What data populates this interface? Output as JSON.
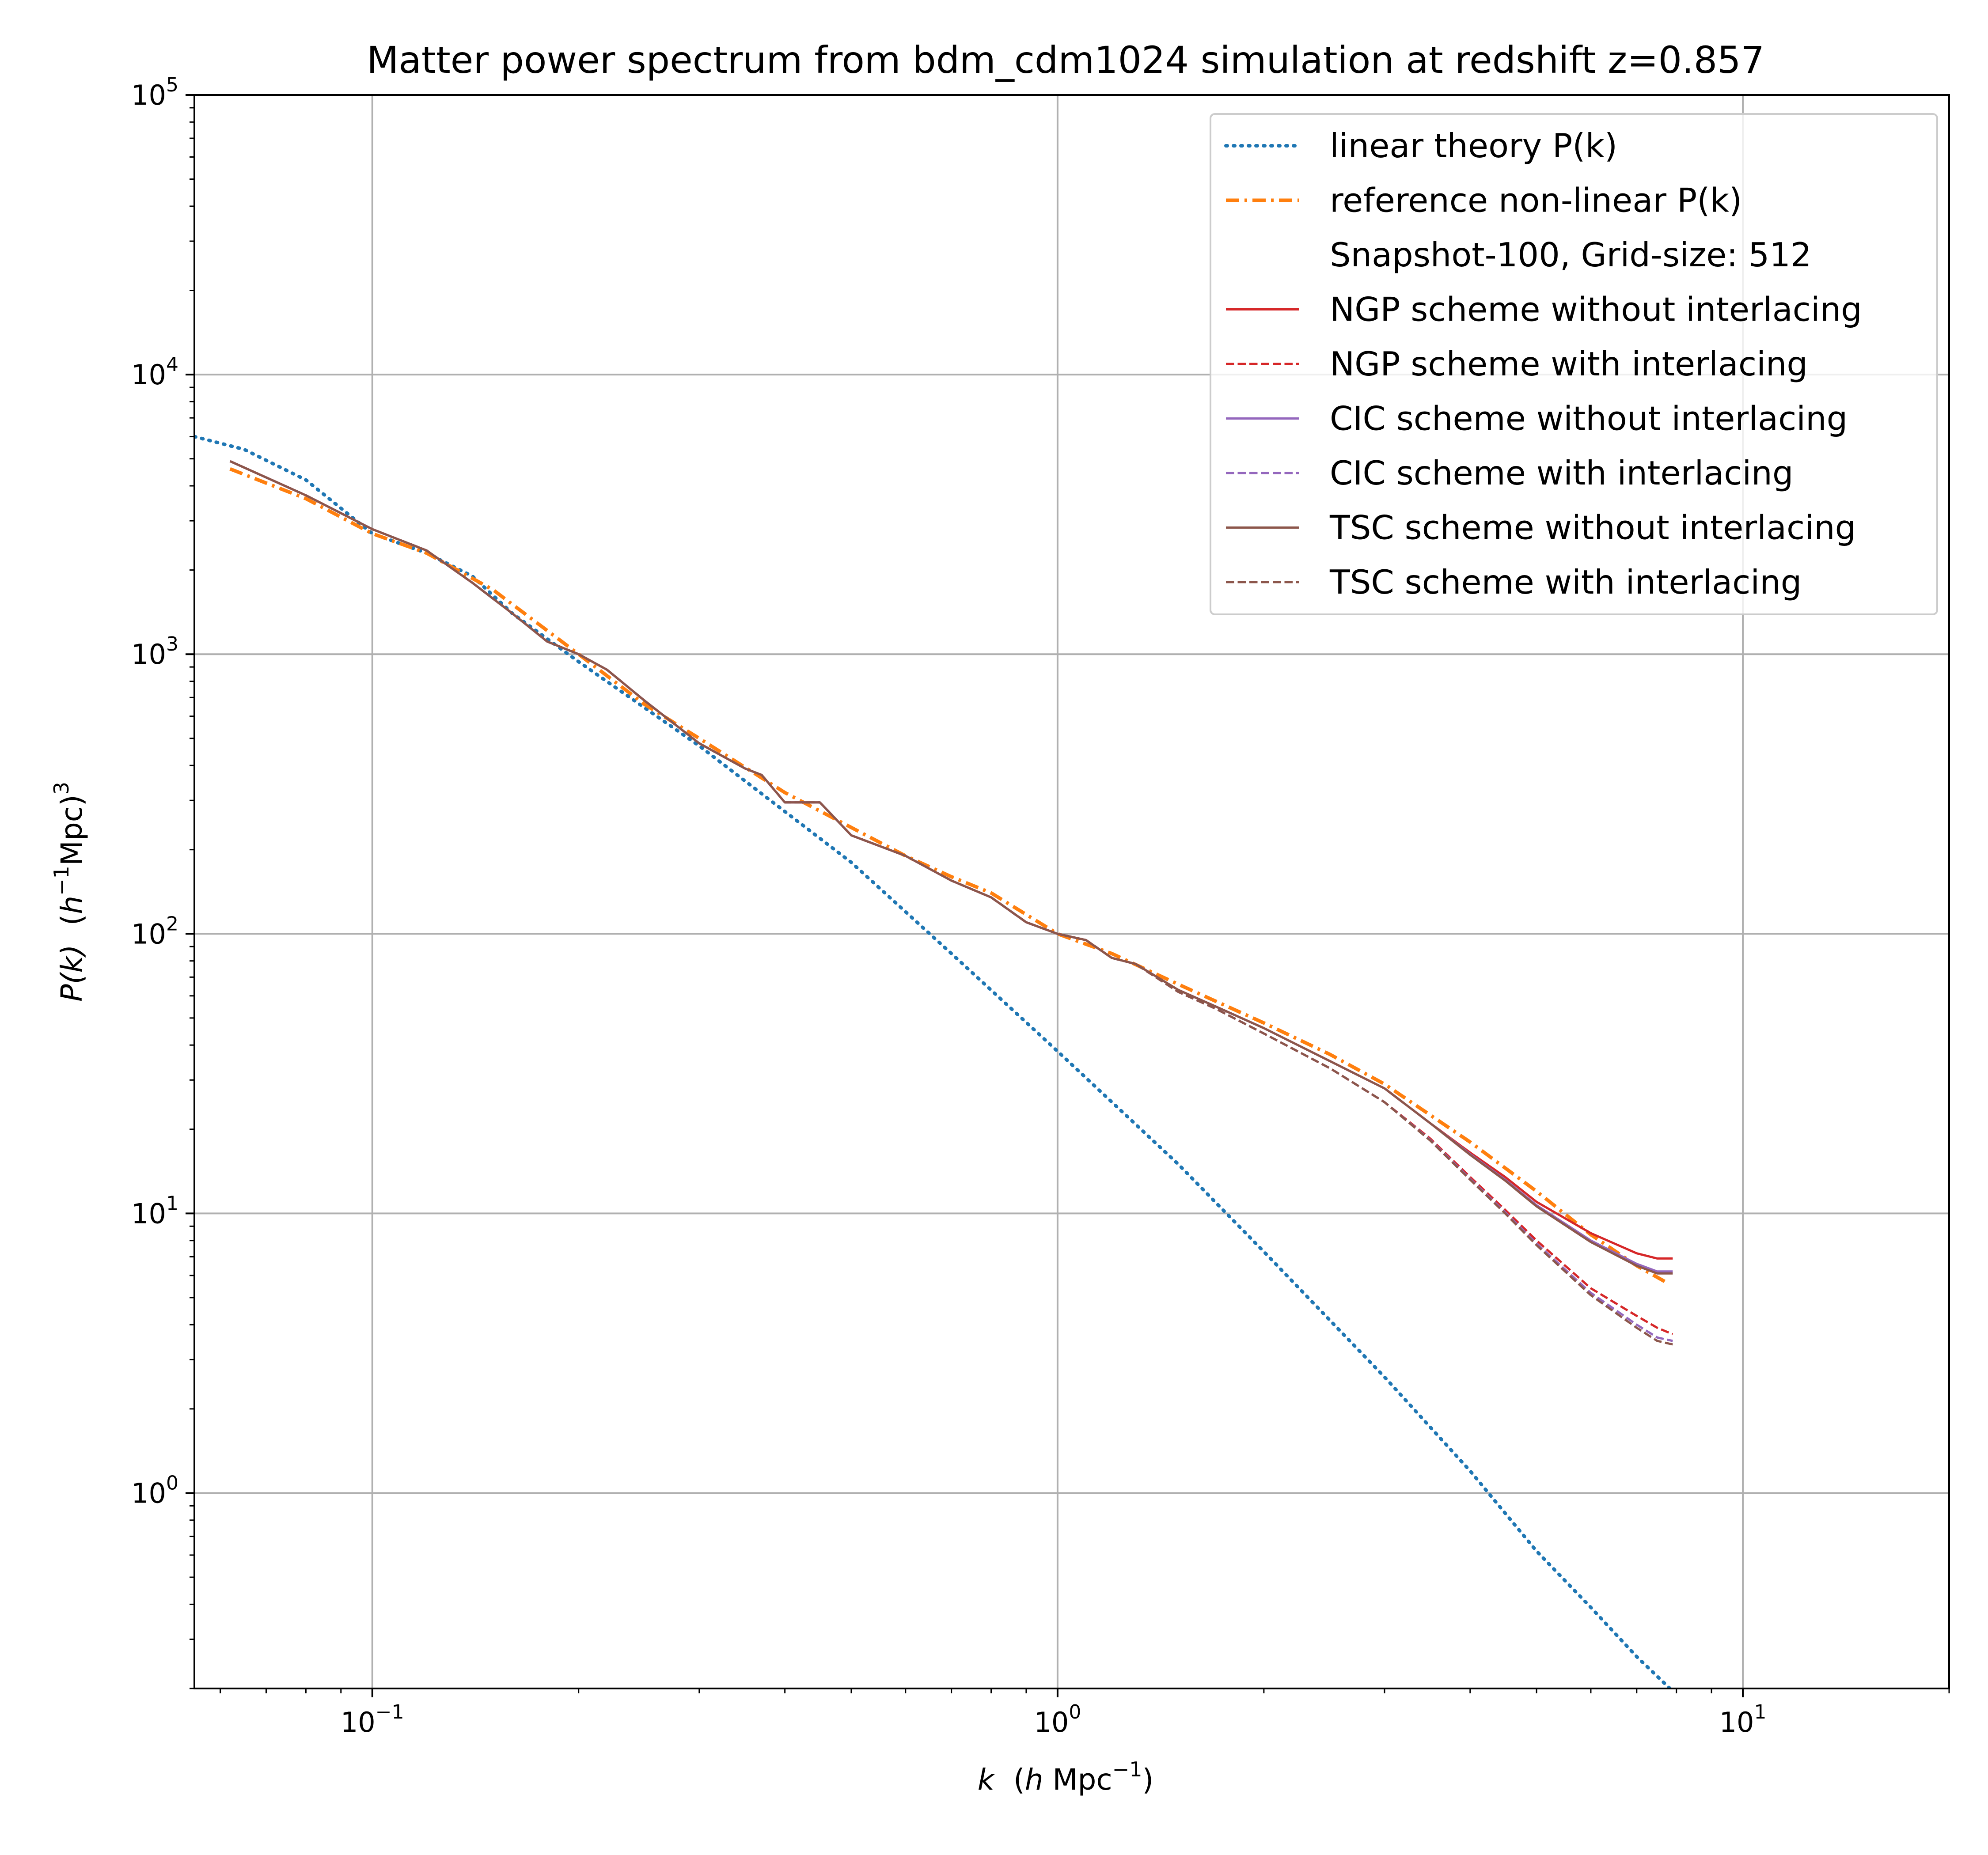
{
  "chart_data": {
    "type": "line",
    "title": "Matter power spectrum from bdm_cdm1024 simulation at redshift z=0.857",
    "xlabel": {
      "main": "k",
      "unit_prefix": "(",
      "unit_h": "h",
      "unit_rest": " Mpc",
      "unit_exp": "−1",
      "unit_suffix": ")"
    },
    "ylabel": {
      "main": "P(k)",
      "unit_prefix": "(",
      "unit_h": "h",
      "unit_exp1": "−1",
      "unit_mid": "Mpc)",
      "unit_exp2": "3"
    },
    "x_scale": "log",
    "y_scale": "log",
    "xlim": [
      0.055,
      20
    ],
    "ylim": [
      0.2,
      100000
    ],
    "grid": true,
    "legend_position": "top-right",
    "x_ticks": [
      {
        "value": 0.1,
        "base": "10",
        "exp": "−1"
      },
      {
        "value": 1,
        "base": "10",
        "exp": "0"
      },
      {
        "value": 10,
        "base": "10",
        "exp": "1"
      }
    ],
    "y_ticks": [
      {
        "value": 1,
        "base": "10",
        "exp": "0"
      },
      {
        "value": 10,
        "base": "10",
        "exp": "1"
      },
      {
        "value": 100,
        "base": "10",
        "exp": "2"
      },
      {
        "value": 1000,
        "base": "10",
        "exp": "3"
      },
      {
        "value": 10000,
        "base": "10",
        "exp": "4"
      },
      {
        "value": 100000,
        "base": "10",
        "exp": "5"
      }
    ],
    "legend_header": "Snapshot-100, Grid-size: 512",
    "series": [
      {
        "name": "linear theory P(k)",
        "color": "#1f77b4",
        "style": "dotted",
        "x": [
          0.055,
          0.065,
          0.08,
          0.1,
          0.12,
          0.14,
          0.16,
          0.2,
          0.3,
          0.5,
          0.7,
          1.0,
          1.5,
          2.0,
          3.0,
          4.0,
          5.0,
          6.0,
          7.0,
          8.0,
          8.2
        ],
        "y": [
          6000,
          5400,
          4200,
          2700,
          2300,
          1900,
          1400,
          940,
          470,
          180,
          85,
          38,
          15,
          7.3,
          2.6,
          1.2,
          0.62,
          0.39,
          0.26,
          0.19,
          0.18
        ]
      },
      {
        "name": "reference non-linear P(k)",
        "color": "#ff7f0e",
        "style": "dashdot",
        "x": [
          0.062,
          0.08,
          0.1,
          0.12,
          0.15,
          0.2,
          0.25,
          0.3,
          0.4,
          0.5,
          0.6,
          0.7,
          0.8,
          1.0,
          1.2,
          1.5,
          2.0,
          2.5,
          3.0,
          4.0,
          5.0,
          6.0,
          7.0,
          7.8
        ],
        "y": [
          4600,
          3600,
          2700,
          2300,
          1700,
          1000,
          660,
          500,
          320,
          240,
          190,
          160,
          140,
          100,
          85,
          66,
          48,
          37,
          29,
          18,
          12,
          8.4,
          6.5,
          5.6
        ]
      },
      {
        "name": "NGP scheme without interlacing",
        "color": "#d62728",
        "style": "solid",
        "x": [
          0.062,
          0.08,
          0.1,
          0.12,
          0.14,
          0.16,
          0.18,
          0.2,
          0.22,
          0.25,
          0.3,
          0.35,
          0.37,
          0.4,
          0.45,
          0.5,
          0.6,
          0.7,
          0.8,
          0.9,
          1.0,
          1.1,
          1.2,
          1.3,
          1.5,
          1.7,
          2.0,
          2.5,
          3.0,
          3.5,
          4.0,
          4.5,
          5.0,
          6.0,
          7.0,
          7.5,
          7.9
        ],
        "y": [
          4900,
          3700,
          2800,
          2350,
          1800,
          1400,
          1110,
          1000,
          880,
          680,
          480,
          390,
          370,
          295,
          295,
          225,
          190,
          155,
          135,
          110,
          100,
          95,
          82,
          78,
          63,
          55,
          46,
          35,
          28,
          21,
          16.5,
          13.5,
          11,
          8.5,
          7.2,
          6.9,
          6.9
        ]
      },
      {
        "name": "NGP scheme with interlacing",
        "color": "#d62728",
        "style": "dashed",
        "x": [
          0.062,
          0.08,
          0.1,
          0.12,
          0.14,
          0.16,
          0.18,
          0.2,
          0.22,
          0.25,
          0.3,
          0.35,
          0.37,
          0.4,
          0.45,
          0.5,
          0.6,
          0.7,
          0.8,
          0.9,
          1.0,
          1.1,
          1.2,
          1.3,
          1.5,
          1.7,
          2.0,
          2.5,
          3.0,
          3.5,
          4.0,
          4.5,
          5.0,
          6.0,
          7.0,
          7.5,
          7.9
        ],
        "y": [
          4900,
          3700,
          2800,
          2350,
          1800,
          1400,
          1110,
          1000,
          880,
          680,
          480,
          390,
          370,
          295,
          295,
          225,
          190,
          155,
          135,
          110,
          100,
          95,
          82,
          78,
          62,
          54,
          44,
          33,
          25,
          18.5,
          13.5,
          10.3,
          8.0,
          5.4,
          4.3,
          3.9,
          3.7
        ]
      },
      {
        "name": "CIC scheme without interlacing",
        "color": "#9467bd",
        "style": "solid",
        "x": [
          0.062,
          0.08,
          0.1,
          0.12,
          0.14,
          0.16,
          0.18,
          0.2,
          0.22,
          0.25,
          0.3,
          0.35,
          0.37,
          0.4,
          0.45,
          0.5,
          0.6,
          0.7,
          0.8,
          0.9,
          1.0,
          1.1,
          1.2,
          1.3,
          1.5,
          1.7,
          2.0,
          2.5,
          3.0,
          3.5,
          4.0,
          4.5,
          5.0,
          6.0,
          7.0,
          7.5,
          7.9
        ],
        "y": [
          4900,
          3700,
          2800,
          2350,
          1800,
          1400,
          1110,
          1000,
          880,
          680,
          480,
          390,
          370,
          295,
          295,
          225,
          190,
          155,
          135,
          110,
          100,
          95,
          82,
          78,
          63,
          55,
          46,
          35,
          28,
          21,
          16.3,
          13.2,
          10.7,
          8.0,
          6.6,
          6.2,
          6.2
        ]
      },
      {
        "name": "CIC scheme with interlacing",
        "color": "#9467bd",
        "style": "dashed",
        "x": [
          0.062,
          0.08,
          0.1,
          0.12,
          0.14,
          0.16,
          0.18,
          0.2,
          0.22,
          0.25,
          0.3,
          0.35,
          0.37,
          0.4,
          0.45,
          0.5,
          0.6,
          0.7,
          0.8,
          0.9,
          1.0,
          1.1,
          1.2,
          1.3,
          1.5,
          1.7,
          2.0,
          2.5,
          3.0,
          3.5,
          4.0,
          4.5,
          5.0,
          6.0,
          7.0,
          7.5,
          7.9
        ],
        "y": [
          4900,
          3700,
          2800,
          2350,
          1800,
          1400,
          1110,
          1000,
          880,
          680,
          480,
          390,
          370,
          295,
          295,
          225,
          190,
          155,
          135,
          110,
          100,
          95,
          82,
          78,
          62,
          54,
          44,
          33,
          25,
          18.3,
          13.3,
          10.1,
          7.8,
          5.2,
          4.0,
          3.6,
          3.5
        ]
      },
      {
        "name": "TSC scheme without interlacing",
        "color": "#8c564b",
        "style": "solid",
        "x": [
          0.062,
          0.08,
          0.1,
          0.12,
          0.14,
          0.16,
          0.18,
          0.2,
          0.22,
          0.25,
          0.3,
          0.35,
          0.37,
          0.4,
          0.45,
          0.5,
          0.6,
          0.7,
          0.8,
          0.9,
          1.0,
          1.1,
          1.2,
          1.3,
          1.5,
          1.7,
          2.0,
          2.5,
          3.0,
          3.5,
          4.0,
          4.5,
          5.0,
          6.0,
          7.0,
          7.5,
          7.9
        ],
        "y": [
          4900,
          3700,
          2800,
          2350,
          1800,
          1400,
          1110,
          1000,
          880,
          680,
          480,
          390,
          370,
          295,
          295,
          225,
          190,
          155,
          135,
          110,
          100,
          95,
          82,
          78,
          63,
          55,
          46,
          35,
          28,
          21,
          16.2,
          13.1,
          10.6,
          7.9,
          6.5,
          6.1,
          6.1
        ]
      },
      {
        "name": "TSC scheme with interlacing",
        "color": "#8c564b",
        "style": "dashed",
        "x": [
          0.062,
          0.08,
          0.1,
          0.12,
          0.14,
          0.16,
          0.18,
          0.2,
          0.22,
          0.25,
          0.3,
          0.35,
          0.37,
          0.4,
          0.45,
          0.5,
          0.6,
          0.7,
          0.8,
          0.9,
          1.0,
          1.1,
          1.2,
          1.3,
          1.5,
          1.7,
          2.0,
          2.5,
          3.0,
          3.5,
          4.0,
          4.5,
          5.0,
          6.0,
          7.0,
          7.5,
          7.9
        ],
        "y": [
          4900,
          3700,
          2800,
          2350,
          1800,
          1400,
          1110,
          1000,
          880,
          680,
          480,
          390,
          370,
          295,
          295,
          225,
          190,
          155,
          135,
          110,
          100,
          95,
          82,
          78,
          62,
          54,
          44,
          33,
          25,
          18.2,
          13.2,
          10.0,
          7.7,
          5.1,
          3.9,
          3.5,
          3.4
        ]
      }
    ]
  }
}
